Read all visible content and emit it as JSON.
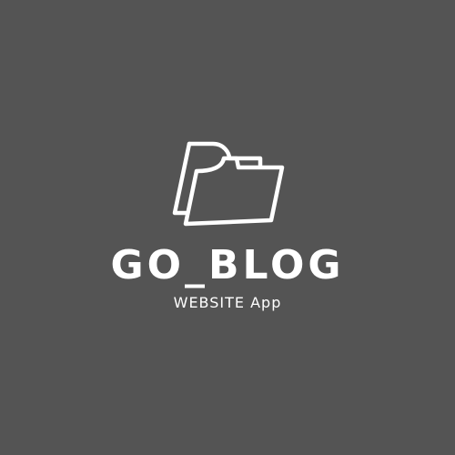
{
  "brand": {
    "name": "GO_BLOG",
    "tagline": "WEBSITE App",
    "icon": "folder-icon"
  },
  "colors": {
    "background": "#545454",
    "foreground": "#ffffff"
  }
}
